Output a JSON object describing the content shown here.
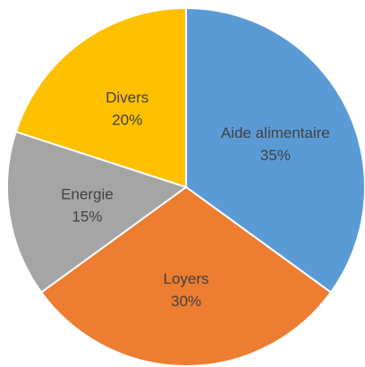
{
  "chart_data": {
    "type": "pie",
    "title": "",
    "legend": "none",
    "slices": [
      {
        "label": "Aide alimentaire",
        "value": 35,
        "display": "35%",
        "color": "#5B9BD5"
      },
      {
        "label": "Loyers",
        "value": 30,
        "display": "30%",
        "color": "#ED7D31"
      },
      {
        "label": "Energie",
        "value": 15,
        "display": "15%",
        "color": "#A5A5A5"
      },
      {
        "label": "Divers",
        "value": 20,
        "display": "20%",
        "color": "#FFC000"
      }
    ]
  }
}
